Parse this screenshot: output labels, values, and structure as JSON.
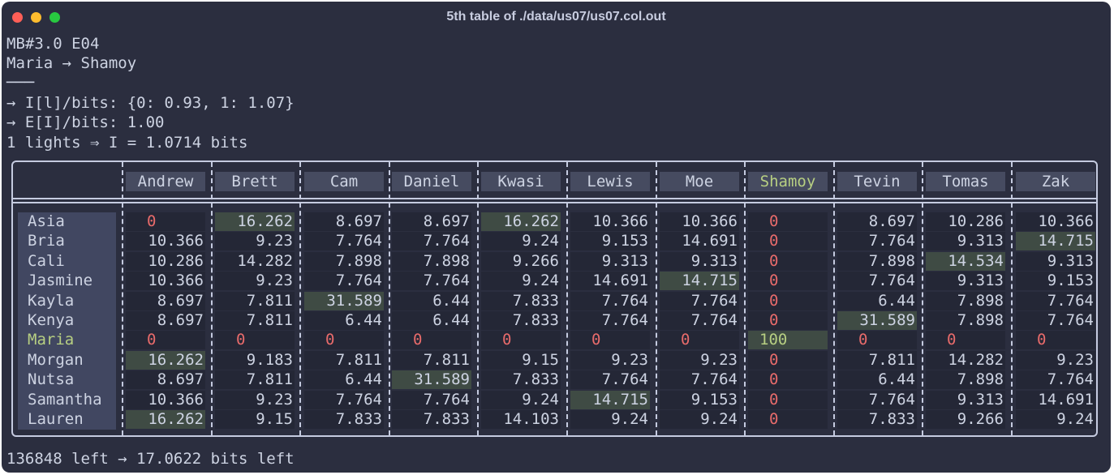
{
  "window": {
    "title": "5th table of ./data/us07/us07.col.out"
  },
  "header_lines": [
    "MB#3.0 E04",
    "Maria → Shamoy",
    "───",
    "→ I[l]/bits: {0: 0.93, 1: 1.07}",
    "→ E[I]/bits: 1.00",
    "1 lights ⇒ I = 1.0714 bits"
  ],
  "footer_line": "136848 left → 17.0622 bits left",
  "table": {
    "highlight_column": "Shamoy",
    "highlight_row": "Maria",
    "columns": [
      "Andrew",
      "Brett",
      "Cam",
      "Daniel",
      "Kwasi",
      "Lewis",
      "Moe",
      "Shamoy",
      "Tevin",
      "Tomas",
      "Zak"
    ],
    "rows": [
      {
        "name": "Asia",
        "values": [
          "0",
          "16.262",
          "8.697",
          "8.697",
          "16.262",
          "10.366",
          "10.366",
          "0",
          "8.697",
          "10.286",
          "10.366"
        ],
        "best": [
          1,
          4
        ]
      },
      {
        "name": "Bria",
        "values": [
          "10.366",
          "9.23",
          "7.764",
          "7.764",
          "9.24",
          "9.153",
          "14.691",
          "0",
          "7.764",
          "9.313",
          "14.715"
        ],
        "best": [
          10
        ]
      },
      {
        "name": "Cali",
        "values": [
          "10.286",
          "14.282",
          "7.898",
          "7.898",
          "9.266",
          "9.313",
          "9.313",
          "0",
          "7.898",
          "14.534",
          "9.313"
        ],
        "best": [
          9
        ]
      },
      {
        "name": "Jasmine",
        "values": [
          "10.366",
          "9.23",
          "7.764",
          "7.764",
          "9.24",
          "14.691",
          "14.715",
          "0",
          "7.764",
          "9.313",
          "9.153"
        ],
        "best": [
          6
        ]
      },
      {
        "name": "Kayla",
        "values": [
          "8.697",
          "7.811",
          "31.589",
          "6.44",
          "7.833",
          "7.764",
          "7.764",
          "0",
          "6.44",
          "7.898",
          "7.764"
        ],
        "best": [
          2
        ]
      },
      {
        "name": "Kenya",
        "values": [
          "8.697",
          "7.811",
          "6.44",
          "6.44",
          "7.833",
          "7.764",
          "7.764",
          "0",
          "31.589",
          "7.898",
          "7.764"
        ],
        "best": [
          8
        ]
      },
      {
        "name": "Maria",
        "values": [
          "0",
          "0",
          "0",
          "0",
          "0",
          "0",
          "0",
          "100",
          "0",
          "0",
          "0"
        ],
        "best": [
          7
        ]
      },
      {
        "name": "Morgan",
        "values": [
          "16.262",
          "9.183",
          "7.811",
          "7.811",
          "9.15",
          "9.23",
          "9.23",
          "0",
          "7.811",
          "14.282",
          "9.23"
        ],
        "best": [
          0
        ]
      },
      {
        "name": "Nutsa",
        "values": [
          "8.697",
          "7.811",
          "6.44",
          "31.589",
          "7.833",
          "7.764",
          "7.764",
          "0",
          "6.44",
          "7.898",
          "7.764"
        ],
        "best": [
          3
        ]
      },
      {
        "name": "Samantha",
        "values": [
          "10.366",
          "9.23",
          "7.764",
          "7.764",
          "9.24",
          "14.715",
          "9.153",
          "0",
          "7.764",
          "9.313",
          "14.691"
        ],
        "best": [
          5
        ]
      },
      {
        "name": "Lauren",
        "values": [
          "16.262",
          "9.15",
          "7.833",
          "7.833",
          "14.103",
          "9.24",
          "9.24",
          "0",
          "7.833",
          "9.266",
          "9.24"
        ],
        "best": [
          0
        ]
      }
    ]
  },
  "colors": {
    "background": "#2b2e3f",
    "text": "#cdd3e2",
    "zero": "#e86b6b",
    "highlight": "#b7cf82",
    "best_cell": "#3f4b44"
  }
}
